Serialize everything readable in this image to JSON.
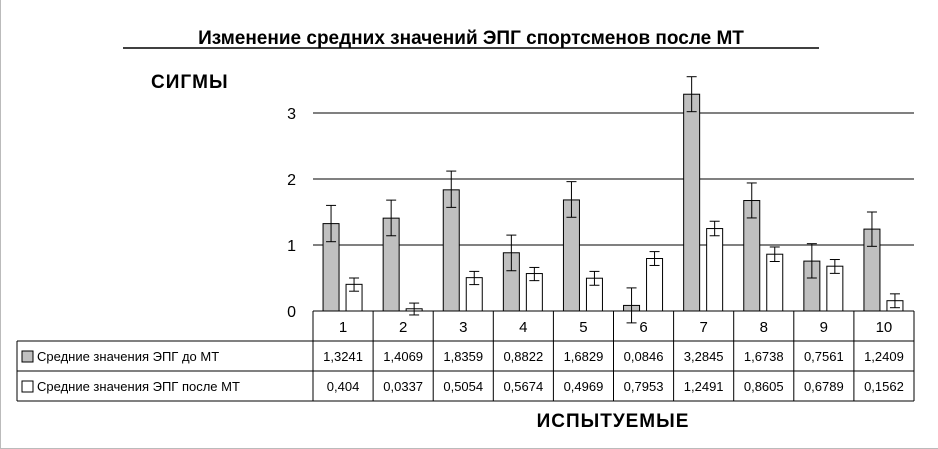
{
  "chart_data": {
    "type": "bar",
    "title": "Изменение средних значений ЭПГ спортсменов после МТ",
    "ylabel": "СИГМЫ",
    "xlabel": "ИСПЫТУЕМЫЕ",
    "ylim": [
      0,
      3.5
    ],
    "yticks": [
      "0",
      "1",
      "2",
      "3"
    ],
    "grid": true,
    "categories": [
      "1",
      "2",
      "3",
      "4",
      "5",
      "6",
      "7",
      "8",
      "9",
      "10"
    ],
    "series": [
      {
        "name": "Средние значения ЭПГ до МТ",
        "color": "#c0c0c0",
        "labels": [
          "1,3241",
          "1,4069",
          "1,8359",
          "0,8822",
          "1,6829",
          "0,0846",
          "3,2845",
          "1,6738",
          "0,7561",
          "1,2409"
        ],
        "values": [
          1.3241,
          1.4069,
          1.8359,
          0.8822,
          1.6829,
          0.0846,
          3.2845,
          1.6738,
          0.7561,
          1.2409
        ],
        "err_low": [
          1.05,
          1.14,
          1.57,
          0.61,
          1.42,
          -0.18,
          3.02,
          1.41,
          0.5,
          0.98
        ],
        "err_high": [
          1.6,
          1.68,
          2.12,
          1.15,
          1.96,
          0.35,
          3.55,
          1.94,
          1.02,
          1.5
        ]
      },
      {
        "name": "Средние значения ЭПГ после МТ",
        "color": "#ffffff",
        "labels": [
          "0,404",
          "0,0337",
          "0,5054",
          "0,5674",
          "0,4969",
          "0,7953",
          "1,2491",
          "0,8605",
          "0,6789",
          "0,1562"
        ],
        "values": [
          0.404,
          0.0337,
          0.5054,
          0.5674,
          0.4969,
          0.7953,
          1.2491,
          0.8605,
          0.6789,
          0.1562
        ],
        "err_low": [
          0.3,
          -0.06,
          0.4,
          0.46,
          0.39,
          0.69,
          1.14,
          0.75,
          0.57,
          0.05
        ],
        "err_high": [
          0.5,
          0.12,
          0.6,
          0.66,
          0.6,
          0.9,
          1.36,
          0.97,
          0.78,
          0.26
        ]
      }
    ],
    "legend": "table"
  }
}
